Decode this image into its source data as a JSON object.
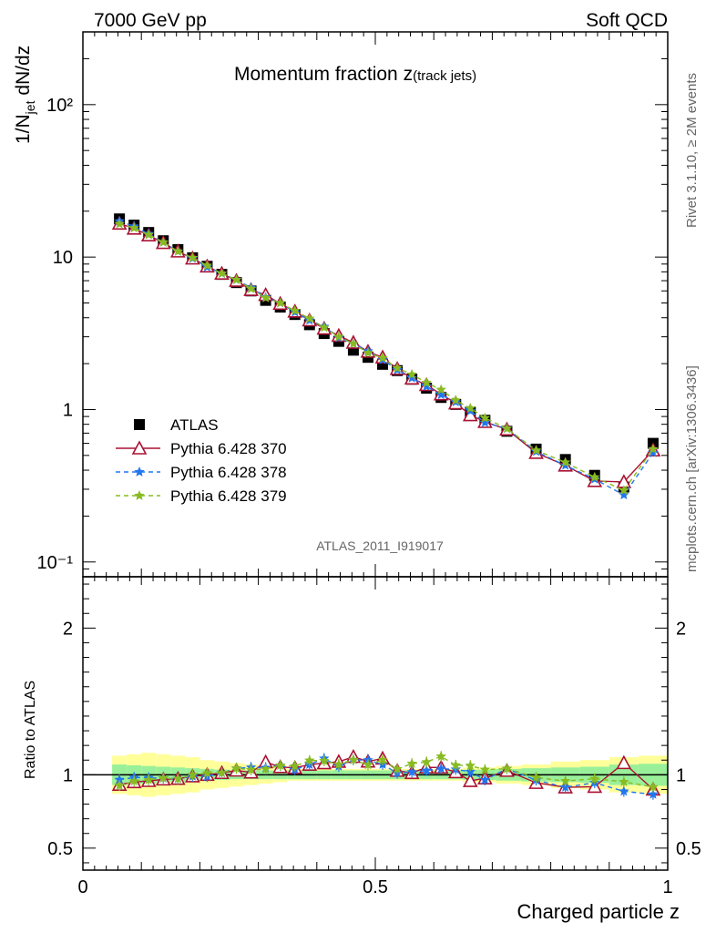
{
  "header": {
    "left": "7000 GeV pp",
    "right": "Soft QCD",
    "title": "Momentum fraction z",
    "title_sub": "(track jets)",
    "analysis": "ATLAS_2011_I919017",
    "side_top": "Rivet 3.1.10, ≥ 2M events",
    "side_bottom": "mcplots.cern.ch [arXiv:1306.3436]"
  },
  "chart_data": {
    "type": "scatter",
    "xlabel": "Charged particle z",
    "ylabel_main": "1/N",
    "ylabel_sub": "jet",
    "ylabel_rest": " dN/dz",
    "ylabel_ratio": "Ratio to ATLAS",
    "xlim": [
      0,
      1
    ],
    "ylim_main": [
      0.08,
      300
    ],
    "yscale_main": "log",
    "ylim_ratio": [
      0.35,
      2.35
    ],
    "x_ticks": [
      "0",
      "0.5",
      "1"
    ],
    "y_ticks_main": [
      "10⁻¹",
      "1",
      "10",
      "10²"
    ],
    "y_ticks_ratio": [
      "0.5",
      "1",
      "2"
    ],
    "legend_position": "center-left",
    "x": [
      0.0625,
      0.0875,
      0.1125,
      0.1375,
      0.1625,
      0.1875,
      0.2125,
      0.2375,
      0.2625,
      0.2875,
      0.3125,
      0.3375,
      0.3625,
      0.3875,
      0.4125,
      0.4375,
      0.4625,
      0.4875,
      0.5125,
      0.5375,
      0.5625,
      0.5875,
      0.6125,
      0.6375,
      0.6625,
      0.6875,
      0.725,
      0.775,
      0.825,
      0.875,
      0.925,
      0.975
    ],
    "series": [
      {
        "name": "ATLAS",
        "color": "#000000",
        "marker": "square",
        "values": [
          17.8,
          16.2,
          14.5,
          12.8,
          11.2,
          9.9,
          8.7,
          7.7,
          6.8,
          6.0,
          5.2,
          4.7,
          4.2,
          3.6,
          3.15,
          2.8,
          2.45,
          2.2,
          1.98,
          1.8,
          1.58,
          1.38,
          1.2,
          1.08,
          0.96,
          0.85,
          0.72,
          0.55,
          0.47,
          0.37,
          0.31,
          0.6
        ]
      },
      {
        "name": "Pythia 6.428 370",
        "color": "#aa1133",
        "marker": "triangle-open",
        "line": "solid",
        "values": [
          16.6,
          15.4,
          13.9,
          12.4,
          10.9,
          9.8,
          8.7,
          7.8,
          7.0,
          6.1,
          5.65,
          4.95,
          4.4,
          3.85,
          3.4,
          3.05,
          2.75,
          2.4,
          2.2,
          1.85,
          1.6,
          1.45,
          1.26,
          1.1,
          0.92,
          0.83,
          0.74,
          0.52,
          0.43,
          0.34,
          0.335,
          0.54
        ]
      },
      {
        "name": "Pythia 6.428 378",
        "color": "#2277ee",
        "marker": "star",
        "line": "dashed",
        "values": [
          17.2,
          15.9,
          14.2,
          12.5,
          10.9,
          9.8,
          8.6,
          7.8,
          7.1,
          6.3,
          5.45,
          5.0,
          4.35,
          3.85,
          3.5,
          2.96,
          2.7,
          2.42,
          2.12,
          1.82,
          1.61,
          1.42,
          1.25,
          1.12,
          0.98,
          0.82,
          0.75,
          0.53,
          0.43,
          0.35,
          0.275,
          0.52
        ]
      },
      {
        "name": "Pythia 6.428 379",
        "color": "#88bb22",
        "marker": "star",
        "line": "dashed",
        "values": [
          16.5,
          15.5,
          14.0,
          12.5,
          10.9,
          9.9,
          8.8,
          7.8,
          7.1,
          6.2,
          5.4,
          5.0,
          4.45,
          3.95,
          3.45,
          3.0,
          2.7,
          2.35,
          2.18,
          1.87,
          1.7,
          1.5,
          1.35,
          1.15,
          1.02,
          0.88,
          0.75,
          0.54,
          0.45,
          0.36,
          0.295,
          0.55
        ]
      }
    ],
    "ratio_bands": {
      "green_half_width": [
        0.07,
        0.065,
        0.06,
        0.055,
        0.05,
        0.045,
        0.04,
        0.035,
        0.03,
        0.03,
        0.03,
        0.03,
        0.03,
        0.03,
        0.03,
        0.03,
        0.03,
        0.03,
        0.03,
        0.03,
        0.03,
        0.03,
        0.03,
        0.03,
        0.035,
        0.035,
        0.04,
        0.045,
        0.05,
        0.055,
        0.07,
        0.075
      ],
      "yellow_half_width": [
        0.13,
        0.14,
        0.15,
        0.14,
        0.13,
        0.12,
        0.1,
        0.09,
        0.08,
        0.07,
        0.06,
        0.05,
        0.04,
        0.04,
        0.04,
        0.04,
        0.04,
        0.04,
        0.04,
        0.04,
        0.04,
        0.04,
        0.04,
        0.04,
        0.05,
        0.05,
        0.06,
        0.07,
        0.09,
        0.1,
        0.12,
        0.13
      ]
    }
  }
}
